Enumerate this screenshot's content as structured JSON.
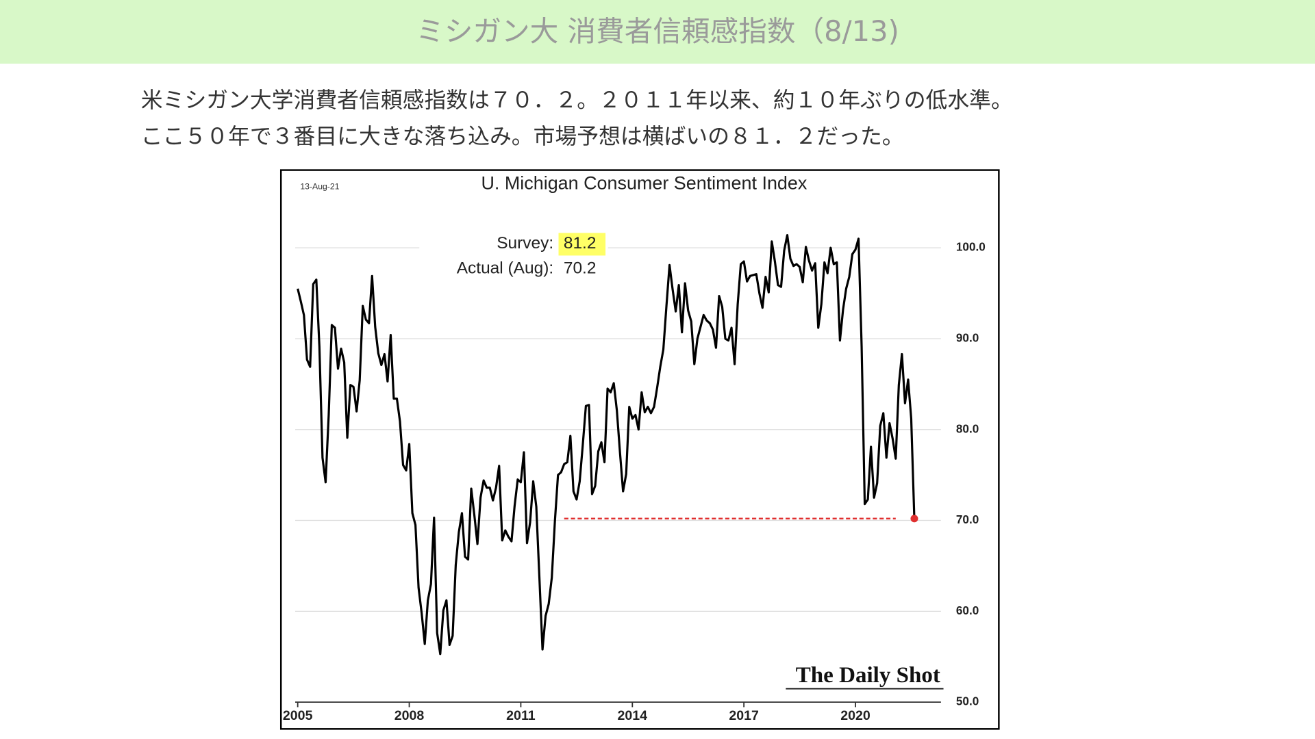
{
  "header": {
    "title": "ミシガン大 消費者信頼感指数（8/13)"
  },
  "body": {
    "lines": [
      "米ミシガン大学消費者信頼感指数は７０．２。２０１１年以来、約１０年ぶりの低水準。",
      "ここ５０年で３番目に大きな落ち込み。市場予想は横ばいの８１．２だった。"
    ]
  },
  "chart_data": {
    "type": "line",
    "title": "U. Michigan Consumer Sentiment Index",
    "date_label": "13-Aug-21",
    "source": "The Daily Shot",
    "annotations": [
      {
        "label": "Survey:",
        "value": 81.2,
        "highlight": "#ffff66"
      },
      {
        "label": "Actual (Aug):",
        "value": 70.2
      }
    ],
    "x": [
      "2005-01",
      "2005-02",
      "2005-03",
      "2005-04",
      "2005-05",
      "2005-06",
      "2005-07",
      "2005-08",
      "2005-09",
      "2005-10",
      "2005-11",
      "2005-12",
      "2006-01",
      "2006-02",
      "2006-03",
      "2006-04",
      "2006-05",
      "2006-06",
      "2006-07",
      "2006-08",
      "2006-09",
      "2006-10",
      "2006-11",
      "2006-12",
      "2007-01",
      "2007-02",
      "2007-03",
      "2007-04",
      "2007-05",
      "2007-06",
      "2007-07",
      "2007-08",
      "2007-09",
      "2007-10",
      "2007-11",
      "2007-12",
      "2008-01",
      "2008-02",
      "2008-03",
      "2008-04",
      "2008-05",
      "2008-06",
      "2008-07",
      "2008-08",
      "2008-09",
      "2008-10",
      "2008-11",
      "2008-12",
      "2009-01",
      "2009-02",
      "2009-03",
      "2009-04",
      "2009-05",
      "2009-06",
      "2009-07",
      "2009-08",
      "2009-09",
      "2009-10",
      "2009-11",
      "2009-12",
      "2010-01",
      "2010-02",
      "2010-03",
      "2010-04",
      "2010-05",
      "2010-06",
      "2010-07",
      "2010-08",
      "2010-09",
      "2010-10",
      "2010-11",
      "2010-12",
      "2011-01",
      "2011-02",
      "2011-03",
      "2011-04",
      "2011-05",
      "2011-06",
      "2011-07",
      "2011-08",
      "2011-09",
      "2011-10",
      "2011-11",
      "2011-12",
      "2012-01",
      "2012-02",
      "2012-03",
      "2012-04",
      "2012-05",
      "2012-06",
      "2012-07",
      "2012-08",
      "2012-09",
      "2012-10",
      "2012-11",
      "2012-12",
      "2013-01",
      "2013-02",
      "2013-03",
      "2013-04",
      "2013-05",
      "2013-06",
      "2013-07",
      "2013-08",
      "2013-09",
      "2013-10",
      "2013-11",
      "2013-12",
      "2014-01",
      "2014-02",
      "2014-03",
      "2014-04",
      "2014-05",
      "2014-06",
      "2014-07",
      "2014-08",
      "2014-09",
      "2014-10",
      "2014-11",
      "2014-12",
      "2015-01",
      "2015-02",
      "2015-03",
      "2015-04",
      "2015-05",
      "2015-06",
      "2015-07",
      "2015-08",
      "2015-09",
      "2015-10",
      "2015-11",
      "2015-12",
      "2016-01",
      "2016-02",
      "2016-03",
      "2016-04",
      "2016-05",
      "2016-06",
      "2016-07",
      "2016-08",
      "2016-09",
      "2016-10",
      "2016-11",
      "2016-12",
      "2017-01",
      "2017-02",
      "2017-03",
      "2017-04",
      "2017-05",
      "2017-06",
      "2017-07",
      "2017-08",
      "2017-09",
      "2017-10",
      "2017-11",
      "2017-12",
      "2018-01",
      "2018-02",
      "2018-03",
      "2018-04",
      "2018-05",
      "2018-06",
      "2018-07",
      "2018-08",
      "2018-09",
      "2018-10",
      "2018-11",
      "2018-12",
      "2019-01",
      "2019-02",
      "2019-03",
      "2019-04",
      "2019-05",
      "2019-06",
      "2019-07",
      "2019-08",
      "2019-09",
      "2019-10",
      "2019-11",
      "2019-12",
      "2020-01",
      "2020-02",
      "2020-03",
      "2020-04",
      "2020-05",
      "2020-06",
      "2020-07",
      "2020-08",
      "2020-09",
      "2020-10",
      "2020-11",
      "2020-12",
      "2021-01",
      "2021-02",
      "2021-03",
      "2021-04",
      "2021-05",
      "2021-06",
      "2021-07",
      "2021-08"
    ],
    "series": [
      {
        "color": "#000000",
        "highlight_color": "#e03030",
        "values": [
          95.5,
          94.1,
          92.6,
          87.7,
          86.9,
          96.0,
          96.5,
          89.1,
          76.9,
          74.2,
          81.6,
          91.5,
          91.2,
          86.7,
          88.9,
          87.4,
          79.1,
          84.9,
          84.7,
          82.0,
          85.4,
          93.6,
          92.1,
          91.7,
          96.9,
          91.3,
          88.4,
          87.1,
          88.3,
          85.3,
          90.4,
          83.4,
          83.4,
          80.9,
          76.1,
          75.5,
          78.4,
          70.8,
          69.5,
          62.6,
          59.8,
          56.4,
          61.2,
          63.0,
          70.3,
          57.6,
          55.3,
          60.1,
          61.2,
          56.3,
          57.3,
          65.1,
          68.7,
          70.8,
          66.0,
          65.7,
          73.5,
          70.6,
          67.4,
          72.5,
          74.4,
          73.6,
          73.6,
          72.2,
          73.6,
          76.0,
          67.8,
          68.9,
          68.2,
          67.7,
          71.6,
          74.5,
          74.2,
          77.5,
          67.5,
          69.8,
          74.3,
          71.5,
          63.7,
          55.8,
          59.5,
          60.8,
          63.7,
          69.9,
          75.0,
          75.3,
          76.2,
          76.4,
          79.3,
          73.2,
          72.3,
          74.3,
          78.3,
          82.6,
          82.7,
          72.9,
          73.8,
          77.6,
          78.6,
          76.4,
          84.5,
          84.1,
          85.1,
          82.1,
          77.5,
          73.2,
          75.1,
          82.5,
          81.2,
          81.6,
          80.0,
          84.1,
          81.9,
          82.5,
          81.8,
          82.5,
          84.6,
          86.9,
          88.8,
          93.6,
          98.1,
          95.4,
          93.0,
          95.9,
          90.7,
          96.1,
          93.1,
          91.9,
          87.2,
          90.0,
          91.3,
          92.6,
          92.0,
          91.7,
          91.0,
          89.0,
          94.7,
          93.5,
          90.0,
          89.8,
          91.2,
          87.2,
          93.8,
          98.2,
          98.5,
          96.3,
          96.9,
          97.0,
          97.1,
          95.0,
          93.4,
          96.8,
          95.1,
          100.7,
          98.5,
          95.9,
          95.7,
          99.7,
          101.4,
          98.8,
          98.0,
          98.2,
          97.9,
          96.2,
          100.1,
          98.6,
          97.5,
          98.3,
          91.2,
          93.8,
          98.4,
          97.2,
          100.0,
          98.2,
          98.4,
          89.8,
          93.2,
          95.5,
          96.8,
          99.3,
          99.8,
          101.0,
          89.1,
          71.8,
          72.3,
          78.1,
          72.5,
          74.1,
          80.4,
          81.8,
          76.9,
          80.7,
          79.0,
          76.8,
          84.9,
          88.3,
          82.9,
          85.5,
          81.2,
          70.2
        ]
      }
    ],
    "ref_line": {
      "value": 70.2,
      "from": "2012-03",
      "to": "2021-02",
      "color": "#e03030"
    },
    "xlim": [
      2005,
      2022.3
    ],
    "xticks": [
      2005,
      2008,
      2011,
      2014,
      2017,
      2020
    ],
    "ylim": [
      50,
      108
    ],
    "yticks": [
      {
        "value": 50,
        "label": "50.0"
      },
      {
        "value": 60,
        "label": "60.0"
      },
      {
        "value": 70,
        "label": "70.0"
      },
      {
        "value": 80,
        "label": "80.0"
      },
      {
        "value": 90,
        "label": "90.0"
      },
      {
        "value": 100,
        "label": "100.0"
      }
    ],
    "grid": true
  }
}
